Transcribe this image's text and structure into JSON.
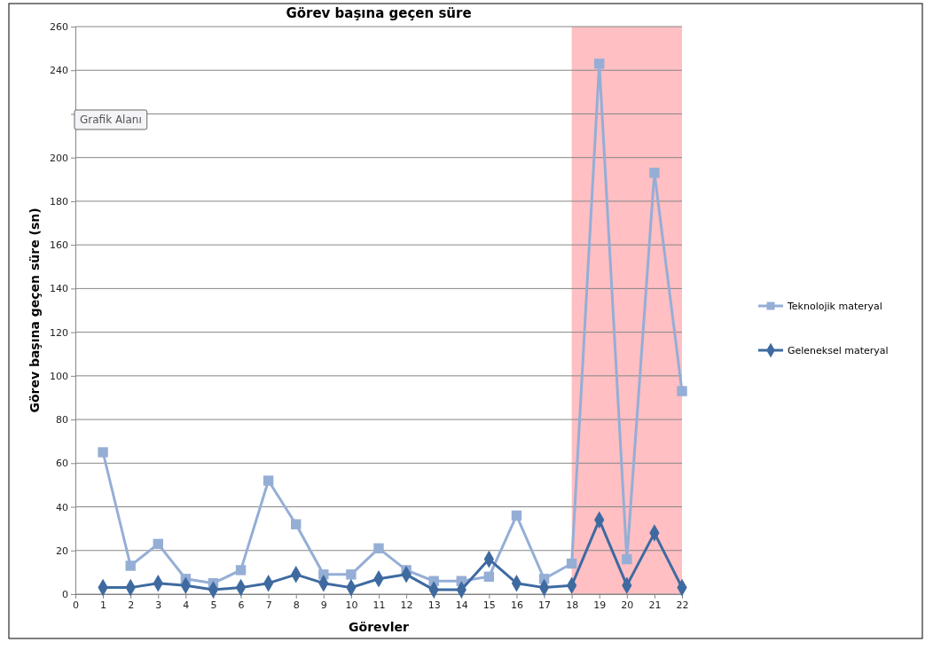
{
  "chart_data": {
    "type": "line",
    "title": "Görev başına  geçen süre",
    "xlabel": "Görevler",
    "ylabel": "Görev başına geçen süre (sn)",
    "x": [
      1,
      2,
      3,
      4,
      5,
      6,
      7,
      8,
      9,
      10,
      11,
      12,
      13,
      14,
      15,
      16,
      17,
      18,
      19,
      20,
      21,
      22
    ],
    "series": [
      {
        "name": "Teknolojik materyal",
        "color": "#95aed6",
        "marker": "square",
        "values": [
          65,
          13,
          23,
          7,
          5,
          11,
          52,
          32,
          9,
          9,
          21,
          11,
          6,
          6,
          8,
          36,
          7,
          14,
          243,
          16,
          193,
          93
        ]
      },
      {
        "name": "Geleneksel materyal",
        "color": "#3e6aa0",
        "marker": "diamond",
        "values": [
          3,
          3,
          5,
          4,
          2,
          3,
          5,
          9,
          5,
          3,
          7,
          9,
          2,
          2,
          16,
          5,
          3,
          4,
          34,
          4,
          28,
          3
        ]
      }
    ],
    "xlim": [
      0,
      22
    ],
    "xticks": [
      0,
      1,
      2,
      3,
      4,
      5,
      6,
      7,
      8,
      9,
      10,
      11,
      12,
      13,
      14,
      15,
      16,
      17,
      18,
      19,
      20,
      21,
      22
    ],
    "ylim": [
      0,
      260
    ],
    "yticks": [
      0,
      20,
      40,
      60,
      80,
      100,
      120,
      140,
      160,
      180,
      200,
      {
        "value": 220,
        "label": null
      },
      240,
      260
    ],
    "bands": [
      {
        "axis": "x",
        "from": 18,
        "to": 22,
        "color": "#ffbfc3"
      }
    ],
    "annotations": [
      "Grafik Alanı"
    ],
    "grid": "y",
    "legend": "right",
    "line_style": "solid"
  }
}
